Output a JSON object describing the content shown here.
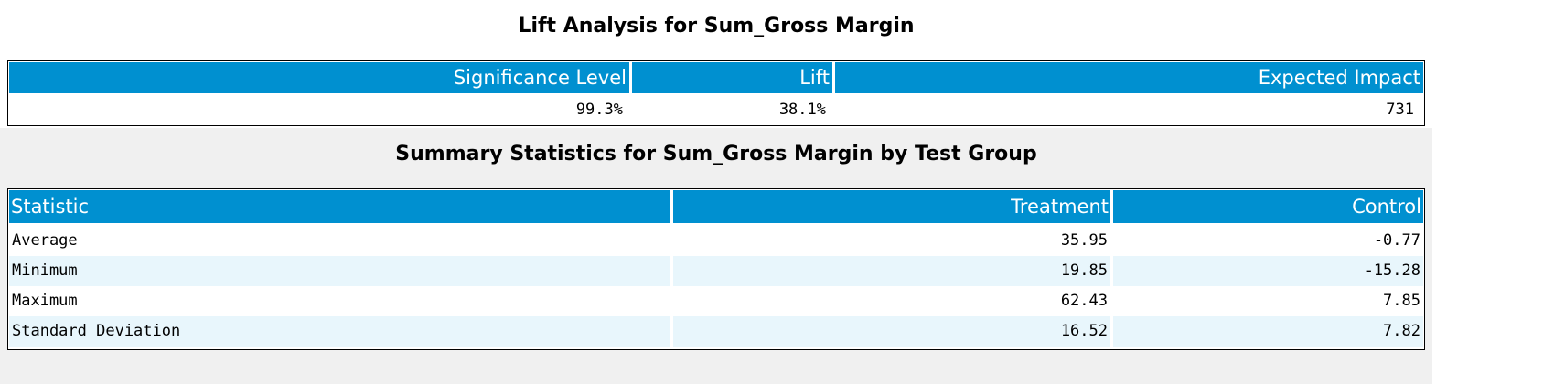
{
  "lift_analysis": {
    "title": "Lift Analysis for Sum_Gross Margin",
    "headers": {
      "significance": "Significance Level",
      "lift": "Lift",
      "impact": "Expected Impact"
    },
    "values": {
      "significance": "99.3%",
      "lift": "38.1%",
      "impact": "731"
    }
  },
  "summary": {
    "title": "Summary Statistics for Sum_Gross Margin by Test Group",
    "headers": {
      "statistic": "Statistic",
      "treatment": "Treatment",
      "control": "Control"
    },
    "rows": [
      {
        "statistic": "Average",
        "treatment": "35.95",
        "control": "-0.77"
      },
      {
        "statistic": "Minimum",
        "treatment": "19.85",
        "control": "-15.28"
      },
      {
        "statistic": "Maximum",
        "treatment": "62.43",
        "control": "7.85"
      },
      {
        "statistic": "Standard Deviation",
        "treatment": "16.52",
        "control": "7.82"
      }
    ]
  },
  "colors": {
    "header_bg": "#0090d0",
    "alt_row_bg": "#e8f6fc",
    "band_bg": "#f0f0f0"
  }
}
